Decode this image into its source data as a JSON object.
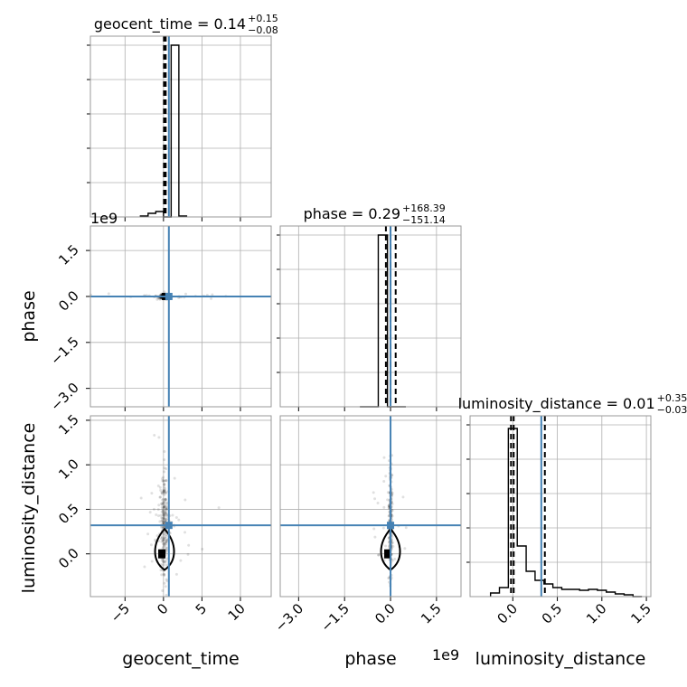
{
  "chart_data": {
    "type": "corner",
    "parameters": [
      "geocent_time",
      "phase",
      "luminosity_distance"
    ],
    "exponent_labels": {
      "phase": "1e9",
      "luminosity_distance": "1e9"
    },
    "truth_color": "#4682b4",
    "truths": {
      "geocent_time": 0.7,
      "phase": 0.0,
      "luminosity_distance": 0.32
    },
    "ranges": {
      "geocent_time": [
        -9.5,
        14
      ],
      "phase": [
        -3.6,
        2.3
      ],
      "luminosity_distance": [
        -0.48,
        1.55
      ]
    },
    "ticks": {
      "geocent_time": [
        {
          "v": -5,
          "label": "−5"
        },
        {
          "v": 0,
          "label": "0"
        },
        {
          "v": 5,
          "label": "5"
        },
        {
          "v": 10,
          "label": "10"
        }
      ],
      "phase": [
        {
          "v": -3,
          "label": "−3.0"
        },
        {
          "v": -1.5,
          "label": "−1.5"
        },
        {
          "v": 0,
          "label": "0.0"
        },
        {
          "v": 1.5,
          "label": "1.5"
        }
      ],
      "luminosity_distance": [
        {
          "v": 0,
          "label": "0.0"
        },
        {
          "v": 0.5,
          "label": "0.5"
        },
        {
          "v": 1,
          "label": "1.0"
        },
        {
          "v": 1.5,
          "label": "1.5"
        }
      ]
    },
    "titles": {
      "geocent_time": {
        "main": "geocent_time = 0.14",
        "sup": "+0.15",
        "sub": "−0.08"
      },
      "phase": {
        "main": "phase = 0.29",
        "sup": "+168.39",
        "sub": "−151.14"
      },
      "luminosity_distance": {
        "main": "luminosity_distance = 0.01",
        "sup": "+0.35",
        "sub": "−0.03"
      }
    },
    "quantiles": {
      "geocent_time": [
        0.06,
        0.14,
        0.29
      ],
      "phase": [
        -0.151,
        0.0,
        0.168
      ],
      "luminosity_distance": [
        -0.02,
        0.01,
        0.36
      ]
    },
    "histograms": {
      "geocent_time": {
        "edges": [
          -3.0,
          -2.0,
          -1.0,
          0.0,
          1.0,
          2.0,
          3.0
        ],
        "heights": [
          0.005,
          0.02,
          0.03,
          0.0,
          0.95,
          0.005
        ]
      },
      "phase": {
        "edges": [
          -1.0,
          -0.7,
          -0.4,
          -0.1,
          0.2,
          0.5
        ],
        "heights": [
          0.0,
          0.0,
          0.95,
          0.0,
          0.0
        ]
      },
      "luminosity_distance": {
        "edges": [
          -0.25,
          -0.15,
          -0.05,
          0.05,
          0.15,
          0.25,
          0.35,
          0.45,
          0.55,
          0.65,
          0.75,
          0.85,
          0.95,
          1.05,
          1.15,
          1.25,
          1.35,
          1.45
        ],
        "heights": [
          0.02,
          0.05,
          0.93,
          0.28,
          0.14,
          0.09,
          0.07,
          0.05,
          0.04,
          0.04,
          0.035,
          0.04,
          0.035,
          0.025,
          0.015,
          0.01,
          0.0
        ]
      }
    }
  }
}
